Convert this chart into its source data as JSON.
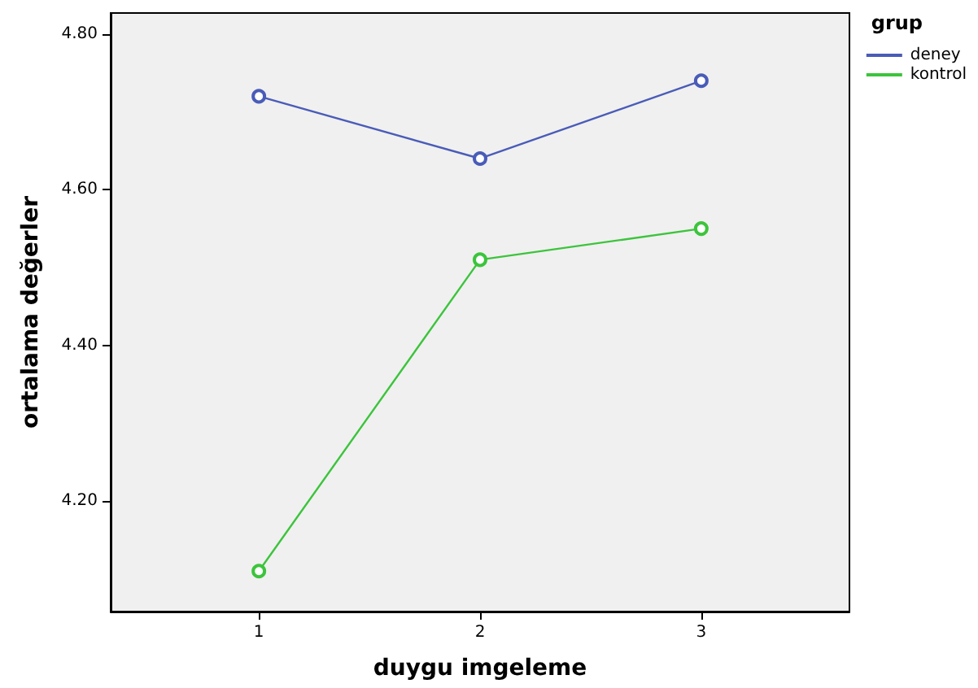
{
  "chart_data": {
    "type": "line",
    "xlabel": "duygu imgeleme",
    "ylabel": "ortalama değerler",
    "legend_title": "grup",
    "x": [
      1,
      2,
      3
    ],
    "series": [
      {
        "name": "deney",
        "color": "#4a5cb8",
        "values": [
          4.72,
          4.64,
          4.74
        ]
      },
      {
        "name": "kontrol",
        "color": "#3cc43c",
        "values": [
          4.11,
          4.51,
          4.55
        ]
      }
    ],
    "xlim": [
      0.33,
      3.67
    ],
    "xticks": [
      1,
      2,
      3
    ],
    "ylim": [
      4.058,
      4.827
    ],
    "yticks": [
      {
        "value": 4.2,
        "label": "4.20"
      },
      {
        "value": 4.4,
        "label": "4.40"
      },
      {
        "value": 4.6,
        "label": "4.60"
      },
      {
        "value": 4.8,
        "label": "4.80"
      }
    ],
    "grid": false,
    "legend": "top right",
    "marker": "circle",
    "line_style": "solid"
  }
}
